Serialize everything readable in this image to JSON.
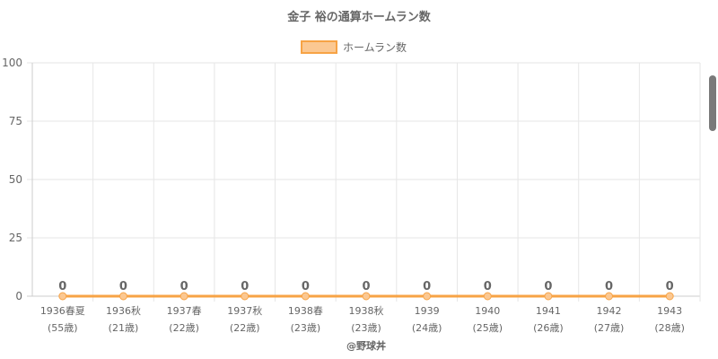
{
  "chart_data": {
    "type": "line",
    "title": "金子 裕の通算ホームラン数",
    "categories": [
      "1936春夏",
      "1936秋",
      "1937春",
      "1937秋",
      "1938春",
      "1938秋",
      "1939",
      "1940",
      "1941",
      "1942",
      "1943"
    ],
    "sublabels": [
      "(55歳)",
      "(21歳)",
      "(22歳)",
      "(22歳)",
      "(23歳)",
      "(23歳)",
      "(24歳)",
      "(25歳)",
      "(26歳)",
      "(27歳)",
      "(28歳)"
    ],
    "series": [
      {
        "name": "ホームラン数",
        "values": [
          0,
          0,
          0,
          0,
          0,
          0,
          0,
          0,
          0,
          0,
          0
        ]
      }
    ],
    "ylim": [
      0,
      100
    ],
    "yticks": [
      "0",
      "25",
      "50",
      "75",
      "100"
    ],
    "grid": true,
    "legend": "top-center",
    "data_labels": true,
    "colors": {
      "line": "#f7a345",
      "fill": "#fbc892",
      "grid": "#e6e6e6",
      "axis": "#cccccc",
      "text": "#666666"
    }
  },
  "credit": "@野球丼",
  "scrollbar": {
    "present": true
  }
}
